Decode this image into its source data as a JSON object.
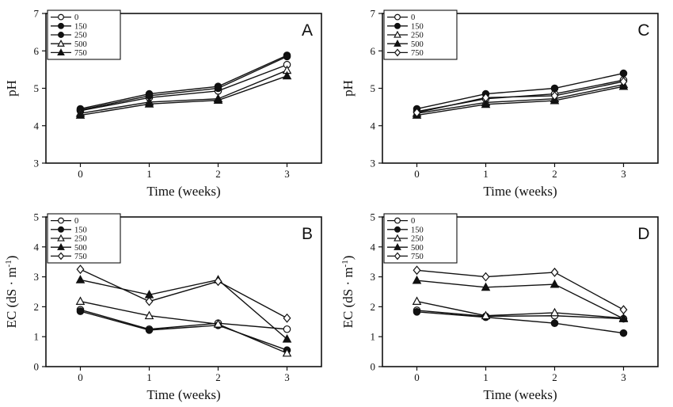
{
  "figure": {
    "background": "#ffffff",
    "ink_color": "#111111",
    "x_axis_label": "Time (weeks)",
    "treatment_legend_labels": [
      "0",
      "150",
      "250",
      "500",
      "750"
    ]
  },
  "chart_data": [
    {
      "panel_label": "A",
      "type": "line",
      "title": "",
      "xlabel": "Time (weeks)",
      "ylabel": "pH",
      "x_tick_labels": [
        "0",
        "1",
        "2",
        "3"
      ],
      "x": [
        0,
        1,
        2,
        3
      ],
      "ylim": [
        3,
        7
      ],
      "yticks": [
        "3",
        "4",
        "5",
        "6",
        "7"
      ],
      "grid": false,
      "legend_position": "top-left",
      "series": [
        {
          "name": "0",
          "marker": "circle-open",
          "values": [
            4.4,
            4.75,
            4.93,
            5.63
          ]
        },
        {
          "name": "150",
          "marker": "circle-filled",
          "values": [
            4.45,
            4.85,
            5.05,
            5.88
          ]
        },
        {
          "name": "250",
          "marker": "circle-filled",
          "values": [
            4.42,
            4.8,
            5.0,
            5.85
          ]
        },
        {
          "name": "500",
          "marker": "triangle-open",
          "values": [
            4.33,
            4.63,
            4.72,
            5.48
          ]
        },
        {
          "name": "750",
          "marker": "triangle-filled",
          "values": [
            4.28,
            4.58,
            4.68,
            5.33
          ]
        }
      ]
    },
    {
      "panel_label": "B",
      "type": "line",
      "title": "",
      "xlabel": "Time (weeks)",
      "ylabel": "EC (dS · m-1)",
      "ylabel_parts": {
        "main": "EC (dS · m",
        "sup": "-1",
        "end": ")"
      },
      "x_tick_labels": [
        "0",
        "1",
        "2",
        "3"
      ],
      "x": [
        0,
        1,
        2,
        3
      ],
      "ylim": [
        0,
        5
      ],
      "yticks": [
        "0",
        "1",
        "2",
        "3",
        "4",
        "5"
      ],
      "grid": false,
      "legend_position": "top-left",
      "series": [
        {
          "name": "0",
          "marker": "circle-open",
          "values": [
            1.9,
            1.25,
            1.45,
            1.25
          ]
        },
        {
          "name": "150",
          "marker": "circle-filled",
          "values": [
            1.85,
            1.22,
            1.38,
            0.55
          ]
        },
        {
          "name": "250",
          "marker": "triangle-open",
          "values": [
            2.18,
            1.7,
            1.42,
            0.45
          ]
        },
        {
          "name": "500",
          "marker": "triangle-filled",
          "values": [
            2.9,
            2.4,
            2.9,
            0.92
          ]
        },
        {
          "name": "750",
          "marker": "diamond-open",
          "values": [
            3.25,
            2.18,
            2.85,
            1.62
          ]
        }
      ]
    },
    {
      "panel_label": "C",
      "type": "line",
      "title": "",
      "xlabel": "Time (weeks)",
      "ylabel": "pH",
      "x_tick_labels": [
        "0",
        "1",
        "2",
        "3"
      ],
      "x": [
        0,
        1,
        2,
        3
      ],
      "ylim": [
        3,
        7
      ],
      "yticks": [
        "3",
        "4",
        "5",
        "6",
        "7"
      ],
      "grid": false,
      "legend_position": "top-left",
      "series": [
        {
          "name": "0",
          "marker": "circle-open",
          "values": [
            4.38,
            4.72,
            4.85,
            5.22
          ]
        },
        {
          "name": "150",
          "marker": "circle-filled",
          "values": [
            4.45,
            4.85,
            5.0,
            5.4
          ]
        },
        {
          "name": "250",
          "marker": "triangle-open",
          "values": [
            4.33,
            4.62,
            4.72,
            5.1
          ]
        },
        {
          "name": "500",
          "marker": "triangle-filled",
          "values": [
            4.28,
            4.57,
            4.67,
            5.05
          ]
        },
        {
          "name": "750",
          "marker": "diamond-open",
          "values": [
            4.35,
            4.75,
            4.8,
            5.18
          ]
        }
      ]
    },
    {
      "panel_label": "D",
      "type": "line",
      "title": "",
      "xlabel": "Time (weeks)",
      "ylabel": "EC (dS · m-1)",
      "ylabel_parts": {
        "main": "EC (dS · m",
        "sup": "-1",
        "end": ")"
      },
      "x_tick_labels": [
        "0",
        "1",
        "2",
        "3"
      ],
      "x": [
        0,
        1,
        2,
        3
      ],
      "ylim": [
        0,
        5
      ],
      "yticks": [
        "0",
        "1",
        "2",
        "3",
        "4",
        "5"
      ],
      "grid": false,
      "legend_position": "top-left",
      "series": [
        {
          "name": "0",
          "marker": "circle-open",
          "values": [
            1.88,
            1.68,
            1.7,
            1.6
          ]
        },
        {
          "name": "150",
          "marker": "circle-filled",
          "values": [
            1.83,
            1.65,
            1.45,
            1.12
          ]
        },
        {
          "name": "250",
          "marker": "triangle-open",
          "values": [
            2.18,
            1.7,
            1.8,
            1.62
          ]
        },
        {
          "name": "500",
          "marker": "triangle-filled",
          "values": [
            2.88,
            2.65,
            2.75,
            1.6
          ]
        },
        {
          "name": "750",
          "marker": "diamond-open",
          "values": [
            3.22,
            3.0,
            3.15,
            1.9
          ]
        }
      ]
    }
  ]
}
